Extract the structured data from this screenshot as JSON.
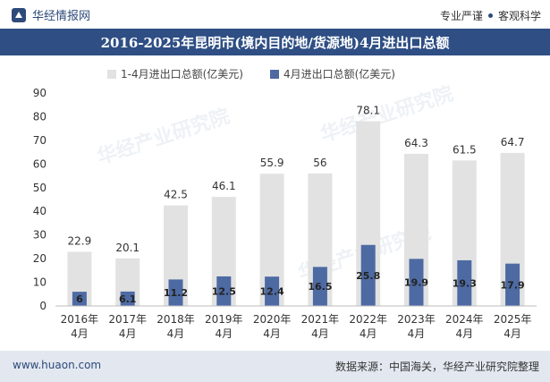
{
  "header": {
    "brand": "华经情报网",
    "slogan_left": "专业严谨",
    "slogan_right": "客观科学"
  },
  "watermark": {
    "text": "华经产业研究院"
  },
  "chart_data": {
    "type": "bar",
    "title": "2016-2025年昆明市(境内目的地/货源地)4月进出口总额",
    "categories": [
      [
        "2016年",
        "4月"
      ],
      [
        "2017年",
        "4月"
      ],
      [
        "2018年",
        "4月"
      ],
      [
        "2019年",
        "4月"
      ],
      [
        "2020年",
        "4月"
      ],
      [
        "2021年",
        "4月"
      ],
      [
        "2022年",
        "4月"
      ],
      [
        "2023年",
        "4月"
      ],
      [
        "2024年",
        "4月"
      ],
      [
        "2025年",
        "4月"
      ]
    ],
    "series": [
      {
        "name": "1-4月进出口总额(亿美元)",
        "color": "#e2e2e2",
        "values": [
          22.9,
          20.1,
          42.5,
          46.1,
          55.9,
          56,
          78.1,
          64.3,
          61.5,
          64.7
        ],
        "labels": [
          "22.9",
          "20.1",
          "42.5",
          "46.1",
          "55.9",
          "56",
          "78.1",
          "64.3",
          "61.5",
          "64.7"
        ]
      },
      {
        "name": "4月进出口总额(亿美元)",
        "color": "#4d6aa3",
        "values": [
          6,
          6.1,
          11.2,
          12.5,
          12.4,
          16.5,
          25.8,
          19.9,
          19.3,
          17.9
        ],
        "labels": [
          "6",
          "6.1",
          "11.2",
          "12.5",
          "12.4",
          "16.5",
          "25.8",
          "19.9",
          "19.3",
          "17.9"
        ]
      }
    ],
    "ylim": [
      0,
      90
    ],
    "yticks": [
      "0",
      "10",
      "20",
      "30",
      "40",
      "50",
      "60",
      "70",
      "80",
      "90"
    ],
    "xlabel": "",
    "ylabel": "",
    "legend": "top",
    "grid": false
  },
  "footer": {
    "site": "www.huaon.com",
    "source": "数据来源：中国海关，华经产业研究院整理"
  }
}
